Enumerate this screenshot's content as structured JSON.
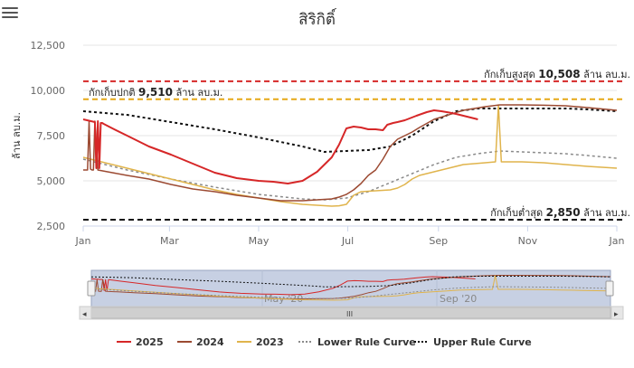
{
  "chart_data": {
    "type": "line",
    "title": "สิริกิติ์",
    "ylabel": "ล้าน ลบ.ม.",
    "ylim": [
      2500,
      12500
    ],
    "yticks": [
      "2,500",
      "5,000",
      "7,500",
      "10,000",
      "12,500"
    ],
    "xticks": [
      "Jan",
      "Mar",
      "May",
      "Jul",
      "Sep",
      "Nov",
      "Jan"
    ],
    "grid": "horizontal",
    "legend_position": "bottom",
    "reference_lines": [
      {
        "name": "max",
        "value": 10508,
        "color": "#d62728",
        "label_prefix": "กักเก็บสูงสุด",
        "label_value": "10,508",
        "label_unit": "ล้าน ลบ.ม."
      },
      {
        "name": "normal",
        "value": 9510,
        "color": "#e6a817",
        "label_prefix": "กักเก็บปกติ",
        "label_value": "9,510",
        "label_unit": "ล้าน ลบ.ม."
      },
      {
        "name": "min",
        "value": 2850,
        "color": "#111111",
        "label_prefix": "กักเก็บต่ำสุด",
        "label_value": "2,850",
        "label_unit": "ล้าน ลบ.ม."
      }
    ],
    "series": [
      {
        "name": "2025",
        "color": "#d62728",
        "dash": "none",
        "width": 2,
        "x": [
          0,
          8,
          9,
          10,
          11,
          12,
          13,
          14,
          20,
          30,
          45,
          60,
          75,
          90,
          105,
          120,
          130,
          140,
          150,
          160,
          170,
          175,
          180,
          185,
          190,
          195,
          200,
          205,
          208,
          212,
          215,
          220,
          228,
          235,
          240,
          245,
          250,
          255,
          260,
          265,
          270
        ],
        "y": [
          8400,
          8250,
          5700,
          8300,
          5700,
          8200,
          8200,
          8150,
          7900,
          7500,
          6900,
          6450,
          5950,
          5450,
          5150,
          5000,
          4950,
          4850,
          5000,
          5500,
          6300,
          7000,
          7900,
          8000,
          7950,
          7850,
          7850,
          7800,
          8100,
          8200,
          8250,
          8350,
          8600,
          8800,
          8900,
          8850,
          8780,
          8700,
          8600,
          8500,
          8400
        ]
      },
      {
        "name": "2024",
        "color": "#9c4a32",
        "dash": "none",
        "width": 1.5,
        "x": [
          0,
          3,
          4,
          5,
          6,
          7,
          8,
          10,
          20,
          30,
          45,
          60,
          75,
          90,
          105,
          120,
          135,
          150,
          160,
          170,
          175,
          180,
          185,
          190,
          195,
          200,
          205,
          210,
          215,
          220,
          225,
          230,
          240,
          260,
          275,
          285,
          300,
          315,
          330,
          345,
          365
        ],
        "y": [
          5600,
          5600,
          8300,
          5650,
          5600,
          5600,
          8300,
          5600,
          5450,
          5300,
          5100,
          4800,
          4550,
          4400,
          4200,
          4050,
          3900,
          3900,
          3950,
          4000,
          4100,
          4250,
          4500,
          4850,
          5300,
          5600,
          6200,
          6900,
          7300,
          7500,
          7700,
          7950,
          8400,
          8900,
          9100,
          9200,
          9200,
          9180,
          9150,
          9050,
          8900
        ]
      },
      {
        "name": "2023",
        "color": "#e0b44c",
        "dash": "none",
        "width": 1.5,
        "x": [
          0,
          15,
          30,
          45,
          60,
          75,
          90,
          105,
          120,
          135,
          150,
          160,
          170,
          175,
          180,
          185,
          190,
          200,
          210,
          215,
          220,
          225,
          230,
          240,
          250,
          260,
          275,
          282,
          284,
          286,
          290,
          300,
          315,
          330,
          345,
          365
        ],
        "y": [
          6300,
          6000,
          5700,
          5400,
          5100,
          4800,
          4500,
          4250,
          4050,
          3850,
          3700,
          3650,
          3600,
          3620,
          3700,
          4200,
          4400,
          4450,
          4500,
          4600,
          4800,
          5100,
          5300,
          5500,
          5700,
          5900,
          6000,
          6050,
          9200,
          6050,
          6050,
          6050,
          6000,
          5900,
          5800,
          5700
        ]
      },
      {
        "name": "Lower Rule Curve",
        "color": "#8a8a8a",
        "dash": "3,3",
        "width": 1.5,
        "x": [
          0,
          30,
          60,
          90,
          120,
          150,
          165,
          180,
          195,
          210,
          225,
          240,
          255,
          270,
          285,
          300,
          315,
          330,
          345,
          365
        ],
        "y": [
          6200,
          5600,
          5100,
          4650,
          4250,
          4000,
          3950,
          4050,
          4400,
          4900,
          5400,
          5900,
          6300,
          6500,
          6650,
          6600,
          6550,
          6500,
          6400,
          6250
        ]
      },
      {
        "name": "Upper Rule Curve",
        "color": "#111111",
        "dash": "3,3",
        "width": 2,
        "x": [
          0,
          30,
          60,
          90,
          120,
          150,
          165,
          180,
          195,
          210,
          225,
          240,
          255,
          270,
          285,
          300,
          315,
          330,
          345,
          365
        ],
        "y": [
          8850,
          8650,
          8250,
          7850,
          7400,
          6900,
          6600,
          6650,
          6700,
          6900,
          7500,
          8300,
          8850,
          9000,
          9000,
          9000,
          9000,
          9000,
          8950,
          8850
        ]
      }
    ]
  },
  "navigator": {
    "labels": [
      "May '20",
      "Sep '20"
    ],
    "scroll_glyph": "III",
    "left_arrow": "◂",
    "right_arrow": "▸",
    "handle_glyph": "|||"
  },
  "menu": {
    "icon": "hamburger-icon"
  }
}
